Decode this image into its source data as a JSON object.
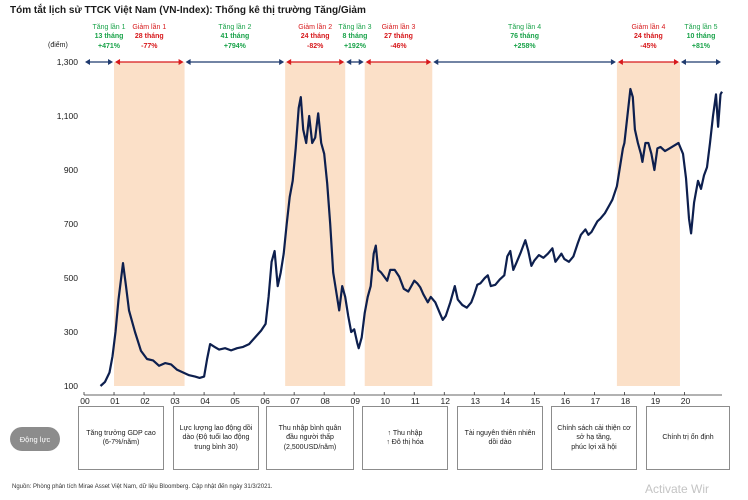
{
  "title": "Tóm tắt lịch sử TTCK Việt Nam (VN-Index): Thống kê thị trường Tăng/Giảm",
  "colors": {
    "line": "#0d1f4e",
    "shade": "#fbe0c8",
    "up": "#1aa34a",
    "down": "#d7191c",
    "arrow_up": "#1f3a6e",
    "arrow_down": "#d7191c"
  },
  "chart_data": {
    "type": "line",
    "ylabel": "(điểm)",
    "ylim": [
      100,
      1300
    ],
    "yticks": [
      100,
      300,
      500,
      700,
      900,
      1100,
      1300
    ],
    "ytick_labels": [
      "100",
      "300",
      "500",
      "700",
      "900",
      "1,100",
      "1,300"
    ],
    "xlim": [
      2000.0,
      2021.25
    ],
    "xticks": [
      2000,
      2001,
      2002,
      2003,
      2004,
      2005,
      2006,
      2007,
      2008,
      2009,
      2010,
      2011,
      2012,
      2013,
      2014,
      2015,
      2016,
      2017,
      2018,
      2019,
      2020
    ],
    "xtick_labels": [
      "00",
      "01",
      "02",
      "03",
      "04",
      "05",
      "06",
      "07",
      "08",
      "09",
      "10",
      "11",
      "12",
      "13",
      "14",
      "15",
      "16",
      "17",
      "18",
      "19",
      "20"
    ],
    "series": [
      {
        "values": [
          [
            2000.55,
            100
          ],
          [
            2000.7,
            115
          ],
          [
            2000.85,
            150
          ],
          [
            2000.95,
            210
          ],
          [
            2001.05,
            300
          ],
          [
            2001.15,
            420
          ],
          [
            2001.3,
            555
          ],
          [
            2001.4,
            470
          ],
          [
            2001.5,
            380
          ],
          [
            2001.7,
            300
          ],
          [
            2001.9,
            230
          ],
          [
            2002.1,
            200
          ],
          [
            2002.3,
            195
          ],
          [
            2002.5,
            175
          ],
          [
            2002.7,
            185
          ],
          [
            2002.9,
            180
          ],
          [
            2003.1,
            160
          ],
          [
            2003.3,
            150
          ],
          [
            2003.5,
            140
          ],
          [
            2003.7,
            135
          ],
          [
            2003.85,
            130
          ],
          [
            2004.0,
            135
          ],
          [
            2004.1,
            200
          ],
          [
            2004.2,
            255
          ],
          [
            2004.35,
            245
          ],
          [
            2004.5,
            235
          ],
          [
            2004.7,
            240
          ],
          [
            2004.9,
            232
          ],
          [
            2005.1,
            240
          ],
          [
            2005.3,
            245
          ],
          [
            2005.5,
            255
          ],
          [
            2005.7,
            280
          ],
          [
            2005.9,
            305
          ],
          [
            2006.05,
            330
          ],
          [
            2006.15,
            430
          ],
          [
            2006.25,
            560
          ],
          [
            2006.35,
            600
          ],
          [
            2006.45,
            470
          ],
          [
            2006.55,
            520
          ],
          [
            2006.65,
            590
          ],
          [
            2006.75,
            700
          ],
          [
            2006.85,
            800
          ],
          [
            2006.95,
            860
          ],
          [
            2007.05,
            980
          ],
          [
            2007.15,
            1130
          ],
          [
            2007.22,
            1170
          ],
          [
            2007.3,
            1050
          ],
          [
            2007.4,
            1000
          ],
          [
            2007.5,
            1100
          ],
          [
            2007.6,
            1000
          ],
          [
            2007.7,
            1020
          ],
          [
            2007.8,
            1110
          ],
          [
            2007.9,
            1000
          ],
          [
            2008.0,
            960
          ],
          [
            2008.1,
            850
          ],
          [
            2008.2,
            700
          ],
          [
            2008.3,
            520
          ],
          [
            2008.4,
            450
          ],
          [
            2008.5,
            380
          ],
          [
            2008.6,
            470
          ],
          [
            2008.7,
            430
          ],
          [
            2008.8,
            360
          ],
          [
            2008.9,
            300
          ],
          [
            2009.0,
            310
          ],
          [
            2009.1,
            260
          ],
          [
            2009.15,
            240
          ],
          [
            2009.25,
            280
          ],
          [
            2009.35,
            370
          ],
          [
            2009.45,
            430
          ],
          [
            2009.55,
            470
          ],
          [
            2009.65,
            590
          ],
          [
            2009.72,
            620
          ],
          [
            2009.8,
            530
          ],
          [
            2009.9,
            520
          ],
          [
            2010.0,
            505
          ],
          [
            2010.1,
            490
          ],
          [
            2010.2,
            530
          ],
          [
            2010.35,
            530
          ],
          [
            2010.5,
            505
          ],
          [
            2010.65,
            460
          ],
          [
            2010.8,
            450
          ],
          [
            2010.9,
            470
          ],
          [
            2011.0,
            490
          ],
          [
            2011.1,
            480
          ],
          [
            2011.2,
            465
          ],
          [
            2011.3,
            440
          ],
          [
            2011.45,
            410
          ],
          [
            2011.55,
            430
          ],
          [
            2011.7,
            410
          ],
          [
            2011.85,
            370
          ],
          [
            2011.95,
            345
          ],
          [
            2012.05,
            360
          ],
          [
            2012.2,
            410
          ],
          [
            2012.35,
            470
          ],
          [
            2012.45,
            420
          ],
          [
            2012.6,
            400
          ],
          [
            2012.75,
            390
          ],
          [
            2012.9,
            410
          ],
          [
            2013.0,
            440
          ],
          [
            2013.1,
            475
          ],
          [
            2013.2,
            480
          ],
          [
            2013.35,
            500
          ],
          [
            2013.45,
            510
          ],
          [
            2013.55,
            470
          ],
          [
            2013.7,
            475
          ],
          [
            2013.85,
            495
          ],
          [
            2014.0,
            510
          ],
          [
            2014.1,
            580
          ],
          [
            2014.2,
            600
          ],
          [
            2014.3,
            530
          ],
          [
            2014.4,
            555
          ],
          [
            2014.55,
            595
          ],
          [
            2014.7,
            640
          ],
          [
            2014.8,
            600
          ],
          [
            2014.9,
            545
          ],
          [
            2015.0,
            565
          ],
          [
            2015.15,
            585
          ],
          [
            2015.3,
            575
          ],
          [
            2015.45,
            590
          ],
          [
            2015.6,
            610
          ],
          [
            2015.7,
            560
          ],
          [
            2015.8,
            575
          ],
          [
            2015.9,
            590
          ],
          [
            2016.0,
            570
          ],
          [
            2016.15,
            560
          ],
          [
            2016.3,
            580
          ],
          [
            2016.45,
            630
          ],
          [
            2016.55,
            660
          ],
          [
            2016.7,
            680
          ],
          [
            2016.8,
            660
          ],
          [
            2016.9,
            670
          ],
          [
            2017.0,
            690
          ],
          [
            2017.1,
            710
          ],
          [
            2017.2,
            720
          ],
          [
            2017.35,
            740
          ],
          [
            2017.5,
            770
          ],
          [
            2017.6,
            790
          ],
          [
            2017.75,
            840
          ],
          [
            2017.85,
            910
          ],
          [
            2017.95,
            980
          ],
          [
            2018.0,
            1000
          ],
          [
            2018.1,
            1100
          ],
          [
            2018.2,
            1200
          ],
          [
            2018.28,
            1170
          ],
          [
            2018.35,
            1050
          ],
          [
            2018.45,
            1000
          ],
          [
            2018.55,
            960
          ],
          [
            2018.6,
            930
          ],
          [
            2018.7,
            1000
          ],
          [
            2018.8,
            1000
          ],
          [
            2018.9,
            960
          ],
          [
            2019.0,
            900
          ],
          [
            2019.1,
            980
          ],
          [
            2019.2,
            985
          ],
          [
            2019.35,
            970
          ],
          [
            2019.5,
            980
          ],
          [
            2019.65,
            990
          ],
          [
            2019.8,
            1000
          ],
          [
            2019.95,
            960
          ],
          [
            2020.05,
            870
          ],
          [
            2020.15,
            720
          ],
          [
            2020.22,
            665
          ],
          [
            2020.32,
            780
          ],
          [
            2020.45,
            860
          ],
          [
            2020.55,
            830
          ],
          [
            2020.65,
            880
          ],
          [
            2020.75,
            910
          ],
          [
            2020.85,
            1000
          ],
          [
            2020.95,
            1100
          ],
          [
            2021.05,
            1180
          ],
          [
            2021.12,
            1060
          ],
          [
            2021.2,
            1180
          ],
          [
            2021.25,
            1190
          ]
        ]
      }
    ],
    "phases": [
      {
        "name": "Tăng lần 1",
        "duration": "13 tháng",
        "change": "+471%",
        "direction": "up",
        "start": 2000.0,
        "end": 2001.0
      },
      {
        "name": "Giảm lần 1",
        "duration": "28 tháng",
        "change": "-77%",
        "direction": "down",
        "start": 2001.0,
        "end": 2003.35
      },
      {
        "name": "Tăng lần 2",
        "duration": "41 tháng",
        "change": "+794%",
        "direction": "up",
        "start": 2003.35,
        "end": 2006.7
      },
      {
        "name": "Giảm lần 2",
        "duration": "24 tháng",
        "change": "-82%",
        "direction": "down",
        "start": 2006.7,
        "end": 2008.7
      },
      {
        "name": "Tăng lần 3",
        "duration": "8 tháng",
        "change": "+192%",
        "direction": "up",
        "start": 2008.7,
        "end": 2009.35
      },
      {
        "name": "Giảm lần 3",
        "duration": "27 tháng",
        "change": "-46%",
        "direction": "down",
        "start": 2009.35,
        "end": 2011.6
      },
      {
        "name": "Tăng lần 4",
        "duration": "76 tháng",
        "change": "+258%",
        "direction": "up",
        "start": 2011.6,
        "end": 2017.75
      },
      {
        "name": "Giảm lần 4",
        "duration": "24 tháng",
        "change": "-45%",
        "direction": "down",
        "start": 2017.75,
        "end": 2019.85
      },
      {
        "name": "Tăng lần 5",
        "duration": "10 tháng",
        "change": "+81%",
        "direction": "up",
        "start": 2019.85,
        "end": 2021.25
      }
    ]
  },
  "drivers": {
    "label": "Động lực",
    "items": [
      "Tăng trưởng GDP cao\n(6-7%/năm)",
      "Lực lượng lao động dồi\ndào (Độ tuổi lao động\ntrung bình 30)",
      "Thu nhập bình quân\nđầu người thấp\n(2,500USD/năm)",
      "↑ Thu nhập\n↑ Đô thị hóa",
      "Tài nguyên thiên nhiên\ndồi dào",
      "Chính sách cải thiện cơ\nsở hạ tầng,\nphúc lợi xã hội",
      "Chính trị ổn định"
    ]
  },
  "source": "Nguồn: Phòng phân tích Mirae Asset Việt Nam, dữ liệu Bloomberg. Cập nhật đến ngày 31/3/2021.",
  "watermark": "Activate Wir"
}
